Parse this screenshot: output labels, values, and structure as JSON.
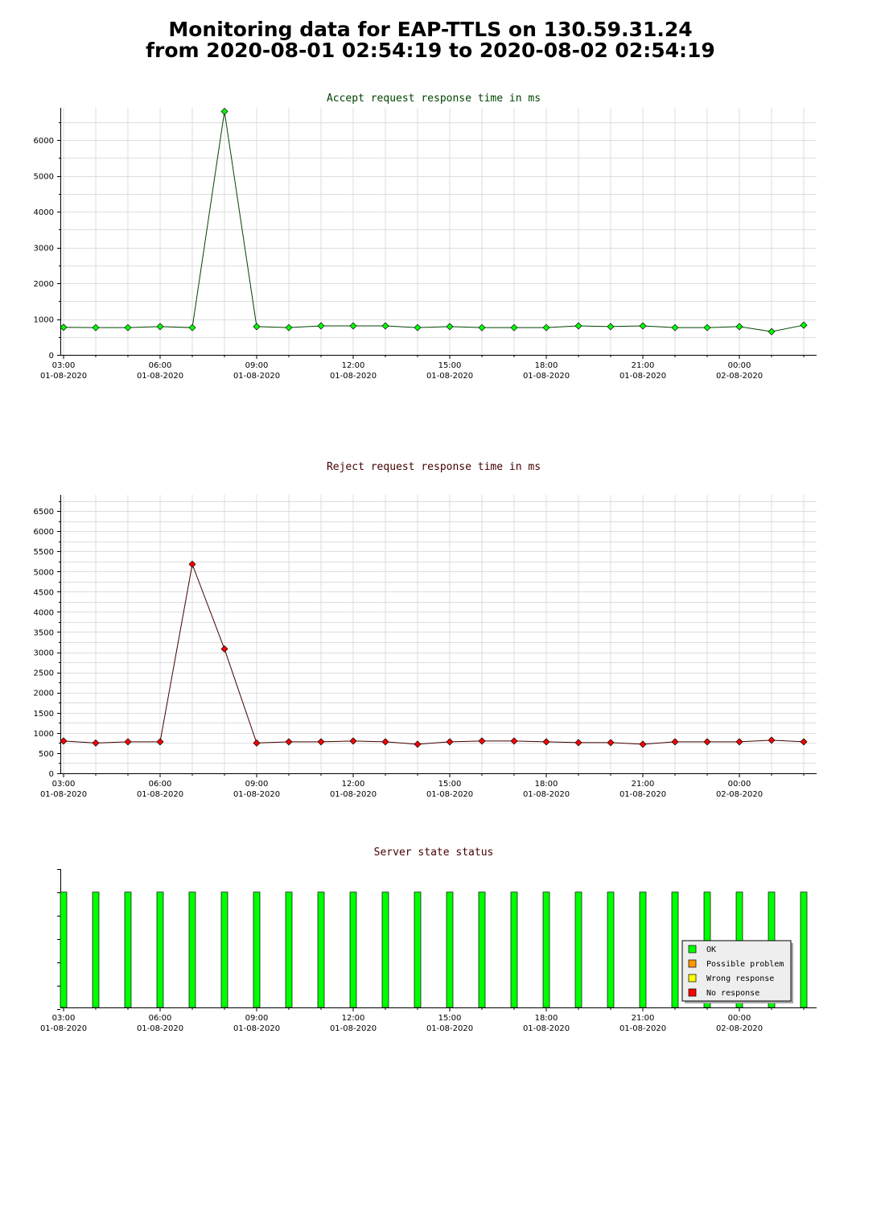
{
  "page": {
    "title_line1": "Monitoring data for EAP-TTLS on 130.59.31.24",
    "title_line2": "from 2020-08-01 02:54:19 to 2020-08-02 02:54:19"
  },
  "colors": {
    "accept_title": "#004400",
    "reject_title": "#440000",
    "accept_line": "#004400",
    "accept_marker": "#00ff00",
    "reject_line": "#440000",
    "reject_marker": "#ff0000",
    "grid": "#dddddd",
    "ok": "#00ff00",
    "possible_problem": "#ff9900",
    "wrong_response": "#ffff00",
    "no_response": "#ff0000"
  },
  "chart_data": [
    {
      "id": "accept",
      "type": "line",
      "title": "Accept request response time in ms",
      "xlim": [
        "2020-08-01 02:54",
        "2020-08-02 02:24"
      ],
      "ylim": [
        0,
        6900
      ],
      "yticks": [
        0,
        1000,
        2000,
        3000,
        4000,
        5000,
        6000
      ],
      "yminor": 500,
      "xticks": [
        {
          "at": "2020-08-01 03:00",
          "time": "03:00",
          "date": "01-08-2020"
        },
        {
          "at": "2020-08-01 06:00",
          "time": "06:00",
          "date": "01-08-2020"
        },
        {
          "at": "2020-08-01 09:00",
          "time": "09:00",
          "date": "01-08-2020"
        },
        {
          "at": "2020-08-01 12:00",
          "time": "12:00",
          "date": "01-08-2020"
        },
        {
          "at": "2020-08-01 15:00",
          "time": "15:00",
          "date": "01-08-2020"
        },
        {
          "at": "2020-08-01 18:00",
          "time": "18:00",
          "date": "01-08-2020"
        },
        {
          "at": "2020-08-01 21:00",
          "time": "21:00",
          "date": "01-08-2020"
        },
        {
          "at": "2020-08-02 00:00",
          "time": "00:00",
          "date": "02-08-2020"
        }
      ],
      "grid": true,
      "x": [
        "2020-08-01 03:00",
        "2020-08-01 04:00",
        "2020-08-01 05:00",
        "2020-08-01 06:00",
        "2020-08-01 07:00",
        "2020-08-01 08:00",
        "2020-08-01 09:00",
        "2020-08-01 10:00",
        "2020-08-01 11:00",
        "2020-08-01 12:00",
        "2020-08-01 13:00",
        "2020-08-01 14:00",
        "2020-08-01 15:00",
        "2020-08-01 16:00",
        "2020-08-01 17:00",
        "2020-08-01 18:00",
        "2020-08-01 19:00",
        "2020-08-01 20:00",
        "2020-08-01 21:00",
        "2020-08-01 22:00",
        "2020-08-01 23:00",
        "2020-08-02 00:00",
        "2020-08-02 01:00",
        "2020-08-02 02:00"
      ],
      "values": [
        770,
        760,
        760,
        790,
        760,
        6800,
        790,
        760,
        810,
        810,
        810,
        760,
        790,
        760,
        760,
        760,
        810,
        790,
        810,
        760,
        760,
        790,
        650,
        830
      ]
    },
    {
      "id": "reject",
      "type": "line",
      "title": "Reject request response time in ms",
      "xlim": [
        "2020-08-01 02:54",
        "2020-08-02 02:24"
      ],
      "ylim": [
        0,
        6900
      ],
      "yticks": [
        0,
        500,
        1000,
        1500,
        2000,
        2500,
        3000,
        3500,
        4000,
        4500,
        5000,
        5500,
        6000,
        6500
      ],
      "yminor": 250,
      "xticks": [
        {
          "at": "2020-08-01 03:00",
          "time": "03:00",
          "date": "01-08-2020"
        },
        {
          "at": "2020-08-01 06:00",
          "time": "06:00",
          "date": "01-08-2020"
        },
        {
          "at": "2020-08-01 09:00",
          "time": "09:00",
          "date": "01-08-2020"
        },
        {
          "at": "2020-08-01 12:00",
          "time": "12:00",
          "date": "01-08-2020"
        },
        {
          "at": "2020-08-01 15:00",
          "time": "15:00",
          "date": "01-08-2020"
        },
        {
          "at": "2020-08-01 18:00",
          "time": "18:00",
          "date": "01-08-2020"
        },
        {
          "at": "2020-08-01 21:00",
          "time": "21:00",
          "date": "01-08-2020"
        },
        {
          "at": "2020-08-02 00:00",
          "time": "00:00",
          "date": "02-08-2020"
        }
      ],
      "grid": true,
      "x": [
        "2020-08-01 03:00",
        "2020-08-01 04:00",
        "2020-08-01 05:00",
        "2020-08-01 06:00",
        "2020-08-01 07:00",
        "2020-08-01 08:00",
        "2020-08-01 09:00",
        "2020-08-01 10:00",
        "2020-08-01 11:00",
        "2020-08-01 12:00",
        "2020-08-01 13:00",
        "2020-08-01 14:00",
        "2020-08-01 15:00",
        "2020-08-01 16:00",
        "2020-08-01 17:00",
        "2020-08-01 18:00",
        "2020-08-01 19:00",
        "2020-08-01 20:00",
        "2020-08-01 21:00",
        "2020-08-01 22:00",
        "2020-08-01 23:00",
        "2020-08-02 00:00",
        "2020-08-02 01:00",
        "2020-08-02 02:00"
      ],
      "values": [
        800,
        750,
        780,
        780,
        5180,
        3080,
        750,
        780,
        780,
        800,
        780,
        720,
        780,
        800,
        800,
        780,
        760,
        760,
        720,
        780,
        780,
        780,
        820,
        780
      ]
    },
    {
      "id": "status",
      "type": "bar",
      "title": "Server state status",
      "xlim": [
        "2020-08-01 02:54",
        "2020-08-02 02:24"
      ],
      "ylim": [
        0,
        1.2
      ],
      "xticks": [
        {
          "at": "2020-08-01 03:00",
          "time": "03:00",
          "date": "01-08-2020"
        },
        {
          "at": "2020-08-01 06:00",
          "time": "06:00",
          "date": "01-08-2020"
        },
        {
          "at": "2020-08-01 09:00",
          "time": "09:00",
          "date": "01-08-2020"
        },
        {
          "at": "2020-08-01 12:00",
          "time": "12:00",
          "date": "01-08-2020"
        },
        {
          "at": "2020-08-01 15:00",
          "time": "15:00",
          "date": "01-08-2020"
        },
        {
          "at": "2020-08-01 18:00",
          "time": "18:00",
          "date": "01-08-2020"
        },
        {
          "at": "2020-08-01 21:00",
          "time": "21:00",
          "date": "01-08-2020"
        },
        {
          "at": "2020-08-02 00:00",
          "time": "00:00",
          "date": "02-08-2020"
        }
      ],
      "grid": false,
      "x": [
        "2020-08-01 03:00",
        "2020-08-01 04:00",
        "2020-08-01 05:00",
        "2020-08-01 06:00",
        "2020-08-01 07:00",
        "2020-08-01 08:00",
        "2020-08-01 09:00",
        "2020-08-01 10:00",
        "2020-08-01 11:00",
        "2020-08-01 12:00",
        "2020-08-01 13:00",
        "2020-08-01 14:00",
        "2020-08-01 15:00",
        "2020-08-01 16:00",
        "2020-08-01 17:00",
        "2020-08-01 18:00",
        "2020-08-01 19:00",
        "2020-08-01 20:00",
        "2020-08-01 21:00",
        "2020-08-01 22:00",
        "2020-08-01 23:00",
        "2020-08-02 00:00",
        "2020-08-02 01:00",
        "2020-08-02 02:00"
      ],
      "states": [
        "ok",
        "ok",
        "ok",
        "ok",
        "ok",
        "ok",
        "ok",
        "ok",
        "ok",
        "ok",
        "ok",
        "ok",
        "ok",
        "ok",
        "ok",
        "ok",
        "ok",
        "ok",
        "ok",
        "ok",
        "ok",
        "ok",
        "ok",
        "ok"
      ],
      "legend_position": "bottom-right",
      "legend": [
        {
          "key": "ok",
          "label": "OK"
        },
        {
          "key": "possible_problem",
          "label": "Possible problem"
        },
        {
          "key": "wrong_response",
          "label": "Wrong response"
        },
        {
          "key": "no_response",
          "label": "No response"
        }
      ]
    }
  ]
}
